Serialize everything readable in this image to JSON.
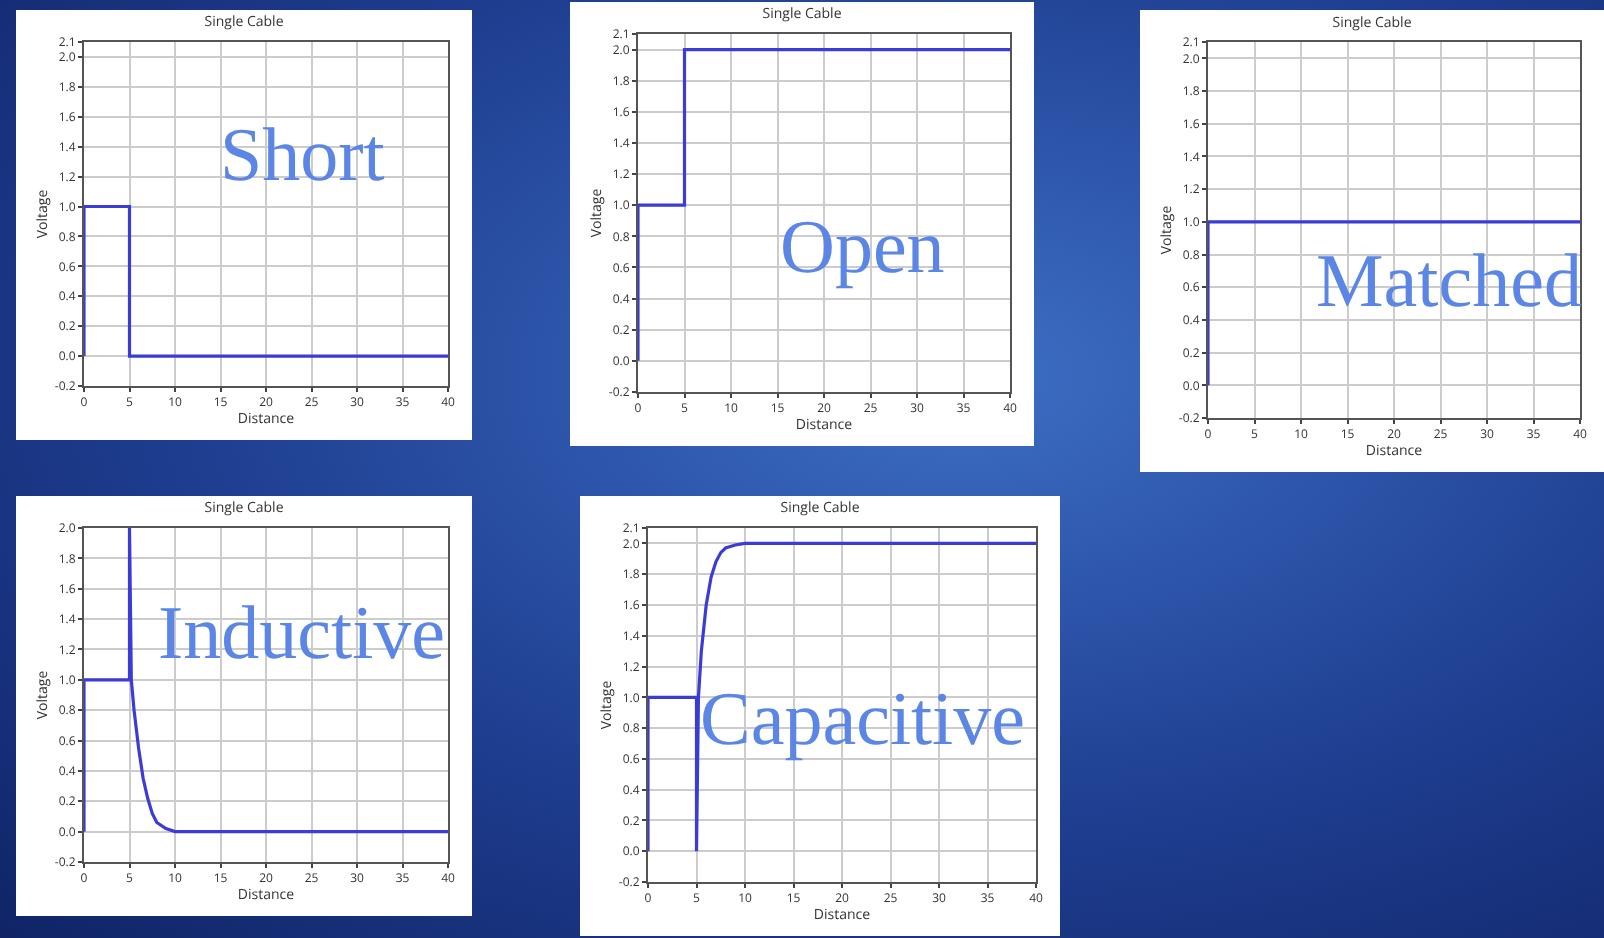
{
  "chart_data": [
    {
      "type": "line",
      "title": "Single Cable",
      "xlabel": "Distance",
      "ylabel": "Voltage",
      "annotations": [
        "Short"
      ],
      "series": [
        {
          "color": "#3b3bd6",
          "x": [
            0,
            0,
            5,
            5,
            40
          ],
          "values": [
            0,
            1,
            1,
            0,
            0
          ]
        }
      ],
      "xlim": [
        0,
        40
      ],
      "xticks": [
        0,
        5,
        10,
        15,
        20,
        25,
        30,
        35,
        40
      ],
      "ylim": [
        -0.2,
        2.1
      ],
      "yticks": [
        {
          "value": -0.2,
          "label": "-0.2"
        },
        {
          "value": 0,
          "label": "0.0"
        },
        {
          "value": 0.2,
          "label": "0.2"
        },
        {
          "value": 0.4,
          "label": "0.4"
        },
        {
          "value": 0.6,
          "label": "0.6"
        },
        {
          "value": 0.8,
          "label": "0.8"
        },
        {
          "value": 1,
          "label": "1.0"
        },
        {
          "value": 1.2,
          "label": "1.2"
        },
        {
          "value": 1.4,
          "label": "1.4"
        },
        {
          "value": 1.6,
          "label": "1.6"
        },
        {
          "value": 1.8,
          "label": "1.8"
        },
        {
          "value": 2,
          "label": "2.0"
        },
        {
          "value": 2.1,
          "label": "2.1"
        }
      ],
      "grid": true
    },
    {
      "type": "line",
      "title": "Single Cable",
      "xlabel": "Distance",
      "ylabel": "Voltage",
      "annotations": [
        "Open"
      ],
      "series": [
        {
          "color": "#3b3bd6",
          "x": [
            0,
            0,
            5,
            5,
            40
          ],
          "values": [
            0,
            1,
            1,
            2,
            2
          ]
        }
      ],
      "xlim": [
        0,
        40
      ],
      "xticks": [
        0,
        5,
        10,
        15,
        20,
        25,
        30,
        35,
        40
      ],
      "ylim": [
        -0.2,
        2.1
      ],
      "yticks": [
        {
          "value": -0.2,
          "label": "-0.2"
        },
        {
          "value": 0,
          "label": "0.0"
        },
        {
          "value": 0.2,
          "label": "0.2"
        },
        {
          "value": 0.4,
          "label": "0.4"
        },
        {
          "value": 0.6,
          "label": "0.6"
        },
        {
          "value": 0.8,
          "label": "0.8"
        },
        {
          "value": 1,
          "label": "1.0"
        },
        {
          "value": 1.2,
          "label": "1.2"
        },
        {
          "value": 1.4,
          "label": "1.4"
        },
        {
          "value": 1.6,
          "label": "1.6"
        },
        {
          "value": 1.8,
          "label": "1.8"
        },
        {
          "value": 2,
          "label": "2.0"
        },
        {
          "value": 2.1,
          "label": "2.1"
        }
      ],
      "grid": true
    },
    {
      "type": "line",
      "title": "Single Cable",
      "xlabel": "Distance",
      "ylabel": "Voltage",
      "annotations": [
        "Matched"
      ],
      "series": [
        {
          "color": "#3b3bd6",
          "x": [
            0,
            0,
            40
          ],
          "values": [
            0,
            1,
            1
          ]
        }
      ],
      "xlim": [
        0,
        40
      ],
      "xticks": [
        0,
        5,
        10,
        15,
        20,
        25,
        30,
        35,
        40
      ],
      "ylim": [
        -0.2,
        2.1
      ],
      "yticks": [
        {
          "value": -0.2,
          "label": "-0.2"
        },
        {
          "value": 0,
          "label": "0.0"
        },
        {
          "value": 0.2,
          "label": "0.2"
        },
        {
          "value": 0.4,
          "label": "0.4"
        },
        {
          "value": 0.6,
          "label": "0.6"
        },
        {
          "value": 0.8,
          "label": "0.8"
        },
        {
          "value": 1,
          "label": "1.0"
        },
        {
          "value": 1.2,
          "label": "1.2"
        },
        {
          "value": 1.4,
          "label": "1.4"
        },
        {
          "value": 1.6,
          "label": "1.6"
        },
        {
          "value": 1.8,
          "label": "1.8"
        },
        {
          "value": 2,
          "label": "2.0"
        },
        {
          "value": 2.1,
          "label": "2.1"
        }
      ],
      "grid": true
    },
    {
      "type": "line",
      "title": "Single Cable",
      "xlabel": "Distance",
      "ylabel": "Voltage",
      "annotations": [
        "Inductive"
      ],
      "series": [
        {
          "color": "#3b3bd6",
          "x": [
            0,
            0,
            5,
            5,
            5.2,
            5.5,
            6,
            6.5,
            7,
            7.5,
            8,
            9,
            10,
            40
          ],
          "values": [
            0,
            1,
            1,
            2,
            1,
            0.8,
            0.55,
            0.35,
            0.22,
            0.12,
            0.06,
            0.02,
            0,
            0
          ]
        }
      ],
      "xlim": [
        0,
        40
      ],
      "xticks": [
        0,
        5,
        10,
        15,
        20,
        25,
        30,
        35,
        40
      ],
      "ylim": [
        -0.2,
        2
      ],
      "yticks": [
        {
          "value": -0.2,
          "label": "-0.2"
        },
        {
          "value": 0,
          "label": "0.0"
        },
        {
          "value": 0.2,
          "label": "0.2"
        },
        {
          "value": 0.4,
          "label": "0.4"
        },
        {
          "value": 0.6,
          "label": "0.6"
        },
        {
          "value": 0.8,
          "label": "0.8"
        },
        {
          "value": 1,
          "label": "1.0"
        },
        {
          "value": 1.2,
          "label": "1.2"
        },
        {
          "value": 1.4,
          "label": "1.4"
        },
        {
          "value": 1.6,
          "label": "1.6"
        },
        {
          "value": 1.8,
          "label": "1.8"
        },
        {
          "value": 2,
          "label": "2.0"
        }
      ],
      "grid": true
    },
    {
      "type": "line",
      "title": "Single Cable",
      "xlabel": "Distance",
      "ylabel": "Voltage",
      "annotations": [
        "Capacitive"
      ],
      "series": [
        {
          "color": "#3b3bd6",
          "x": [
            0,
            0,
            5,
            5,
            5.2,
            5.5,
            6,
            6.5,
            7,
            7.5,
            8,
            9,
            10,
            40
          ],
          "values": [
            0,
            1,
            1,
            0,
            1,
            1.3,
            1.6,
            1.78,
            1.88,
            1.94,
            1.97,
            1.99,
            2,
            2
          ]
        }
      ],
      "xlim": [
        0,
        40
      ],
      "xticks": [
        0,
        5,
        10,
        15,
        20,
        25,
        30,
        35,
        40
      ],
      "ylim": [
        -0.2,
        2.1
      ],
      "yticks": [
        {
          "value": -0.2,
          "label": "-0.2"
        },
        {
          "value": 0,
          "label": "0.0"
        },
        {
          "value": 0.2,
          "label": "0.2"
        },
        {
          "value": 0.4,
          "label": "0.4"
        },
        {
          "value": 0.6,
          "label": "0.6"
        },
        {
          "value": 0.8,
          "label": "0.8"
        },
        {
          "value": 1,
          "label": "1.0"
        },
        {
          "value": 1.2,
          "label": "1.2"
        },
        {
          "value": 1.4,
          "label": "1.4"
        },
        {
          "value": 1.6,
          "label": "1.6"
        },
        {
          "value": 1.8,
          "label": "1.8"
        },
        {
          "value": 2,
          "label": "2.0"
        },
        {
          "value": 2.1,
          "label": "2.1"
        }
      ],
      "grid": true
    }
  ]
}
